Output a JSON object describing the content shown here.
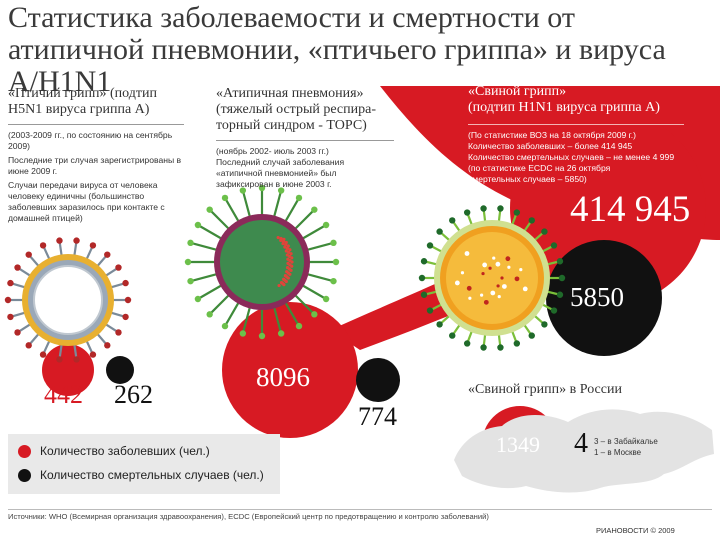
{
  "title": "Статистика заболеваемости и смертности от атипичной пневмонии, «птичьего гриппа» и вируса A/H1N1",
  "colors": {
    "cases": "#d71a23",
    "deaths": "#111111",
    "background": "#ffffff",
    "accent": "#d71a23"
  },
  "sections": {
    "bird": {
      "title_line1": "«Птичий грипп» (подтип",
      "title_line2": "H5N1 вируса гриппа А)",
      "note1": "(2003-2009 гг., по состоянию на сентябрь 2009)",
      "note2": "Последние  три случая зарегистрированы в июне 2009 г.",
      "note3": "Случаи передачи вируса от человека человеку единичны (большинство заболевших заразилось при контакте с домашней птицей)",
      "cases": "442",
      "deaths": "262"
    },
    "sars": {
      "title_line1": "«Атипичная пневмония»",
      "title_line2": "(тяжелый острый респира-",
      "title_line3": "торный синдром - ТОРС)",
      "note1": "(ноябрь 2002- июль 2003 гг.)",
      "note2": "Последний случай заболевания «атипичной пневмонией» был зафиксирован в июне 2003 г.",
      "cases": "8096",
      "deaths": "774"
    },
    "swine": {
      "title_line1": "«Свиной грипп»",
      "title_line2": "(подтип H1N1 вируса гриппа А)",
      "note1": "(По статистике ВОЗ на 18 октября 2009 г.)",
      "note2": "Количество заболевших – более 414 945",
      "note3": "Количество смертельных случаев – не менее 4 999",
      "note4": "(по статистике ECDC на 26 октября",
      "note5": "смертельных случаев – 5850)",
      "cases": "414 945",
      "deaths": "5850"
    },
    "russia": {
      "title": "«Свиной грипп» в России",
      "cases": "1349",
      "deaths": "4",
      "note1": "3 – в Забайкалье",
      "note2": "1 – в Москве"
    }
  },
  "legend": {
    "cases": "Количество заболевших (чел.)",
    "deaths": "Количество смертельных случаев (чел.)"
  },
  "footer": {
    "sources": "Источники: WHO (Всемирная организация здравоохранения), ECDC (Европейский центр по предотвращению и контролю заболеваний)",
    "copyright": "РИАНОВОСТИ © 2009"
  },
  "chart_data": {
    "type": "bubble",
    "title": "Статистика заболеваемости и смертности от атипичной пневмонии, «птичьего гриппа» и вируса A/H1N1",
    "categories": [
      "«Птичий грипп»",
      "«Атипичная пневмония»",
      "«Свиной грипп»",
      "«Свиной грипп» в России"
    ],
    "series": [
      {
        "name": "Количество заболевших (чел.)",
        "values": [
          442,
          8096,
          414945,
          1349
        ]
      },
      {
        "name": "Количество смертельных случаев (чел.)",
        "values": [
          262,
          774,
          5850,
          4
        ]
      }
    ]
  }
}
